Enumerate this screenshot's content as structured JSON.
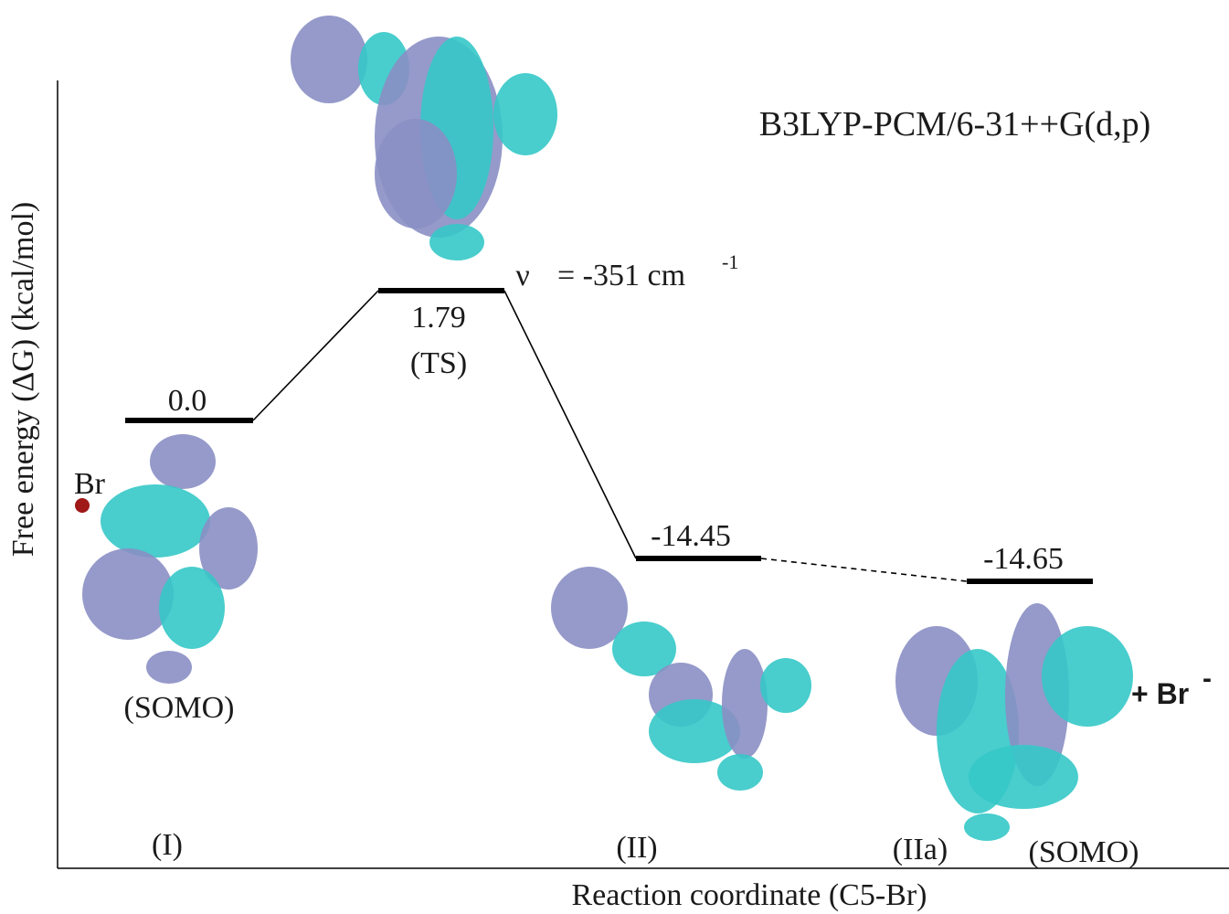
{
  "method": "B3LYP-PCM/6-31++G(d,p)",
  "y_axis_label": "Free energy (ΔG) (kcal/mol)",
  "x_axis_label": "Reaction coordinate (C5-Br)",
  "levels": [
    {
      "energy": "0.0",
      "species": "(I)",
      "orbital": "(SOMO)",
      "atom": "Br"
    },
    {
      "energy": "1.79",
      "species": "(TS)",
      "frequency": {
        "symbol": "ν",
        "text": "= -351 cm",
        "superscript": "-1"
      }
    },
    {
      "energy": "-14.45",
      "species": "(II)"
    },
    {
      "energy": "-14.65",
      "species": "(IIa)",
      "orbital": "(SOMO)"
    }
  ],
  "product": {
    "text": "+ Br",
    "superscript": "-"
  }
}
